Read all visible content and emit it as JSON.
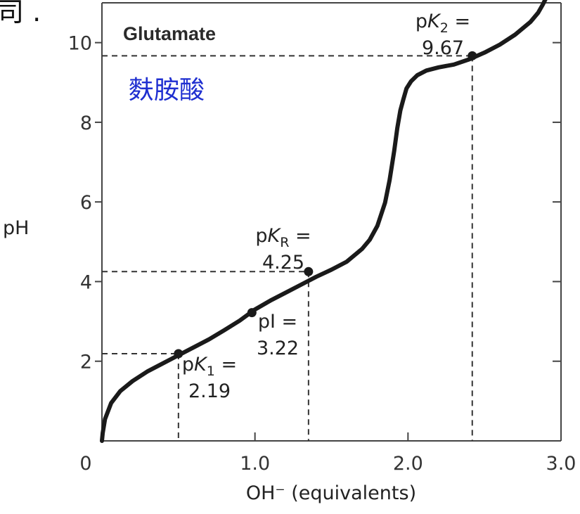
{
  "corner_fragment": "司 .",
  "colors": {
    "curve": "#1a1a1a",
    "chinese_label": "#1f2fd0",
    "guides": "#333333",
    "frame": "#444444"
  },
  "chart_data": {
    "type": "line",
    "title": "Glutamate",
    "annotation_cn": "麩胺酸",
    "xlabel": "OH⁻ (equivalents)",
    "ylabel": "pH",
    "xlim": [
      0,
      3.0
    ],
    "ylim": [
      0,
      11
    ],
    "x_ticks": [
      {
        "value": 0,
        "label": "0"
      },
      {
        "value": 1.0,
        "label": "1.0"
      },
      {
        "value": 2.0,
        "label": "2.0"
      },
      {
        "value": 3.0,
        "label": "3.0"
      }
    ],
    "y_ticks": [
      {
        "value": 2,
        "label": "2"
      },
      {
        "value": 4,
        "label": "4"
      },
      {
        "value": 6,
        "label": "6"
      },
      {
        "value": 8,
        "label": "8"
      },
      {
        "value": 10,
        "label": "10"
      }
    ],
    "grid": false,
    "series": [
      {
        "x": [
          0,
          0.005,
          0.02,
          0.06,
          0.12,
          0.2,
          0.3,
          0.4,
          0.5,
          0.6,
          0.7,
          0.8,
          0.9,
          1.0,
          1.1,
          1.2,
          1.3,
          1.4,
          1.5,
          1.6,
          1.7,
          1.75,
          1.8,
          1.85,
          1.88,
          1.91,
          1.93,
          1.95,
          1.97,
          1.99,
          2.02,
          2.06,
          2.12,
          2.2,
          2.3,
          2.4,
          2.5,
          2.6,
          2.7,
          2.8,
          2.85,
          2.88,
          2.9
        ],
        "y": [
          0,
          0.2,
          0.55,
          0.95,
          1.25,
          1.5,
          1.75,
          1.95,
          2.15,
          2.35,
          2.55,
          2.78,
          3.02,
          3.3,
          3.52,
          3.72,
          3.92,
          4.12,
          4.3,
          4.5,
          4.82,
          5.05,
          5.4,
          5.98,
          6.55,
          7.28,
          7.85,
          8.3,
          8.58,
          8.85,
          9.03,
          9.18,
          9.3,
          9.38,
          9.45,
          9.58,
          9.75,
          9.95,
          10.2,
          10.52,
          10.75,
          10.95,
          11.1
        ]
      }
    ],
    "points": [
      {
        "x": 0.5,
        "y": 2.19,
        "label": "pK1",
        "text": "p",
        "italic": "K",
        "sub": "1",
        "eq": " =",
        "value": "2.19"
      },
      {
        "x": 0.98,
        "y": 3.22,
        "label": "pI",
        "text": "pI =",
        "value": "3.22"
      },
      {
        "x": 1.35,
        "y": 4.25,
        "label": "pKR",
        "text": "p",
        "italic": "K",
        "sub": "R",
        "eq": " =",
        "value": "4.25"
      },
      {
        "x": 2.42,
        "y": 9.67,
        "label": "pK2",
        "text": "p",
        "italic": "K",
        "sub": "2",
        "eq": " =",
        "value": "9.67"
      }
    ]
  }
}
